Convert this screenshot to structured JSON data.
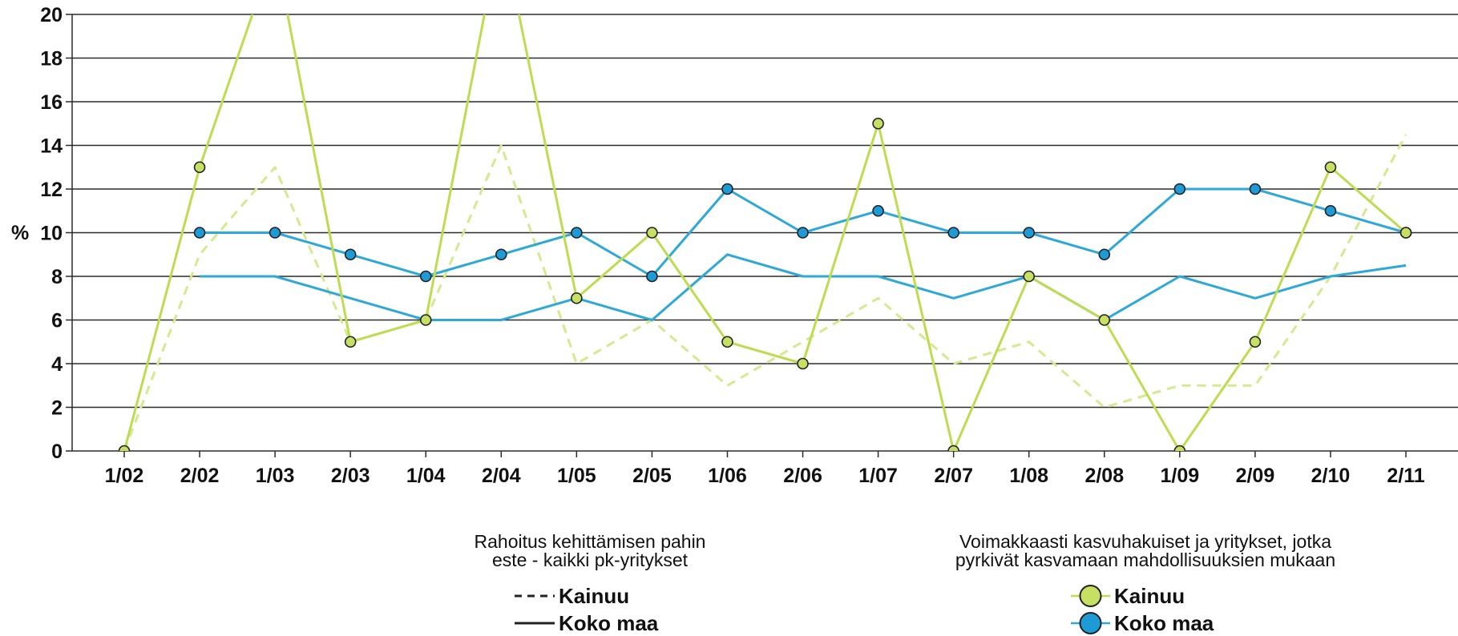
{
  "chart_data": {
    "type": "line",
    "ylabel": "%",
    "ylim": [
      0,
      20
    ],
    "yticks": [
      0,
      2,
      4,
      6,
      8,
      10,
      12,
      14,
      16,
      18,
      20
    ],
    "grid": true,
    "categories": [
      "1/02",
      "2/02",
      "1/03",
      "2/03",
      "1/04",
      "2/04",
      "1/05",
      "2/05",
      "1/06",
      "2/06",
      "1/07",
      "2/07",
      "1/08",
      "2/08",
      "1/09",
      "2/09",
      "2/10",
      "2/11"
    ],
    "legend_groups": [
      {
        "title_lines": [
          "Rahoitus kehittämisen pahin",
          "este - kaikki pk-yritykset"
        ],
        "entries": [
          "Kainuu",
          "Koko maa"
        ]
      },
      {
        "title_lines": [
          "Voimakkaasti kasvuhakuiset ja yritykset, jotka",
          "pyrkivät kasvamaan mahdollisuuksien mukaan"
        ],
        "entries": [
          "Kainuu",
          "Koko maa"
        ]
      }
    ],
    "series": [
      {
        "group": 0,
        "name": "Kainuu",
        "style": "dashed",
        "markers": false,
        "color": "#d4ea8f",
        "values": [
          0,
          9,
          13,
          5,
          6,
          14,
          4,
          6,
          3,
          5,
          7,
          4,
          5,
          2,
          3,
          3,
          8,
          14.5
        ]
      },
      {
        "group": 0,
        "name": "Koko maa",
        "style": "solid",
        "markers": false,
        "color": "#2ea8d8",
        "values": [
          null,
          8,
          8,
          7,
          6,
          6,
          7,
          6,
          9,
          8,
          8,
          7,
          8,
          6,
          8,
          7,
          8,
          8.5
        ]
      },
      {
        "group": 1,
        "name": "Kainuu",
        "style": "solid",
        "markers": true,
        "color": "#bddc4f",
        "marker_fill": "#c5e063",
        "values": [
          0,
          13,
          23,
          5,
          6,
          24,
          7,
          10,
          5,
          4,
          15,
          0,
          8,
          6,
          0,
          5,
          13,
          10
        ]
      },
      {
        "group": 1,
        "name": "Koko maa",
        "style": "solid",
        "markers": true,
        "color": "#2ea8d8",
        "marker_fill": "#1e9ad6",
        "values": [
          null,
          10,
          10,
          9,
          8,
          9,
          10,
          8,
          12,
          10,
          11,
          10,
          10,
          9,
          12,
          12,
          11,
          10
        ]
      }
    ]
  }
}
